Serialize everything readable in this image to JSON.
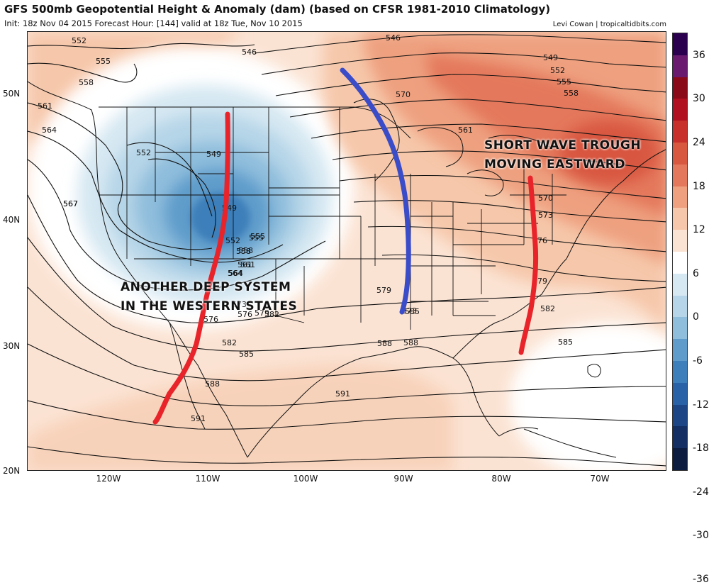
{
  "header": {
    "title": "GFS 500mb Geopotential Height & Anomaly (dam) (based on CFSR 1981-2010 Climatology)",
    "subtitle": "Init: 18z Nov 04 2015   Forecast Hour: [144]   valid at 18z Tue, Nov 10 2015",
    "credit": "Levi Cowan | tropicaltidbits.com"
  },
  "axes": {
    "lat_labels": [
      "50N",
      "40N",
      "30N",
      "20N"
    ],
    "lon_labels": [
      "120W",
      "110W",
      "100W",
      "90W",
      "80W",
      "70W"
    ]
  },
  "colorbar": {
    "ticks": [
      "36",
      "30",
      "24",
      "18",
      "12",
      "6",
      "0",
      "-6",
      "-12",
      "-18",
      "-24",
      "-30",
      "-36"
    ],
    "colors": [
      "#2b004f",
      "#6a1b6f",
      "#8b0a1a",
      "#b01020",
      "#c8302b",
      "#d8573f",
      "#e4785c",
      "#eea07f",
      "#f6c7aa",
      "#fbe3d3",
      "#ffffff",
      "#d6e8f2",
      "#b6d5e8",
      "#8fbddc",
      "#5f9ccb",
      "#3c7fba",
      "#2962a6",
      "#1c4686",
      "#132f63",
      "#0b1c40"
    ]
  },
  "contour_labels": [
    "552",
    "555",
    "558",
    "561",
    "564",
    "567",
    "546",
    "549",
    "552",
    "555",
    "558",
    "561",
    "564",
    "549",
    "552",
    "555",
    "558",
    "561",
    "564",
    "567",
    "570",
    "573",
    "576",
    "579",
    "582",
    "585",
    "588",
    "591",
    "546",
    "549",
    "552",
    "555",
    "558",
    "561",
    "570",
    "573",
    "576",
    "579",
    "582",
    "585",
    "588",
    "591",
    "573",
    "576",
    "579",
    "582",
    "585",
    "588"
  ],
  "annotations": {
    "east": [
      "SHORT WAVE TROUGH",
      "MOVING EASTWARD"
    ],
    "west": [
      "ANOTHER DEEP SYSTEM",
      "IN THE WESTERN STATES"
    ]
  },
  "colors": {
    "trough_red": "#e8242a",
    "ridge_blue": "#3a4cc8"
  }
}
